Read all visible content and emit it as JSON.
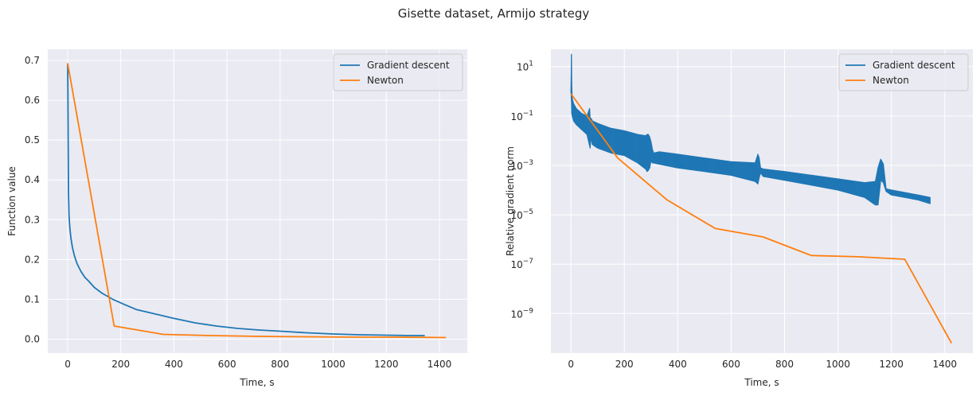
{
  "figure": {
    "title": "Gisette dataset, Armijo strategy"
  },
  "colors": {
    "background": "#eaeaf2",
    "grid": "#ffffff",
    "gradient_descent": "#1f77b4",
    "newton": "#ff7f0e"
  },
  "chart_data": [
    {
      "type": "line",
      "title": "",
      "xlabel": "Time, s",
      "ylabel": "Function value",
      "xlim": [
        -75,
        1505
      ],
      "ylim": [
        -0.035,
        0.728
      ],
      "yscale": "linear",
      "grid": true,
      "legend_position": "upper right",
      "xticks": [
        0,
        200,
        400,
        600,
        800,
        1000,
        1200,
        1400
      ],
      "yticks": [
        0.0,
        0.1,
        0.2,
        0.3,
        0.4,
        0.5,
        0.6,
        0.7
      ],
      "ytick_labels": [
        "0.0",
        "0.1",
        "0.2",
        "0.3",
        "0.4",
        "0.5",
        "0.6",
        "0.7"
      ],
      "series": [
        {
          "name": "Gradient descent",
          "x": [
            0,
            1,
            2,
            3,
            5,
            8,
            12,
            18,
            25,
            35,
            50,
            65,
            80,
            100,
            130,
            170,
            210,
            260,
            330,
            400,
            480,
            560,
            640,
            720,
            800,
            900,
            1000,
            1100,
            1200,
            1300,
            1345
          ],
          "y": [
            0.693,
            0.62,
            0.48,
            0.37,
            0.31,
            0.28,
            0.255,
            0.23,
            0.21,
            0.19,
            0.17,
            0.155,
            0.145,
            0.13,
            0.115,
            0.1,
            0.088,
            0.074,
            0.063,
            0.052,
            0.041,
            0.033,
            0.027,
            0.023,
            0.02,
            0.016,
            0.013,
            0.011,
            0.01,
            0.009,
            0.009
          ]
        },
        {
          "name": "Newton",
          "x": [
            0,
            175,
            360,
            540,
            720,
            900,
            1075,
            1250,
            1425
          ],
          "y": [
            0.693,
            0.033,
            0.012,
            0.009,
            0.007,
            0.006,
            0.005,
            0.005,
            0.004
          ]
        }
      ]
    },
    {
      "type": "line",
      "title": "",
      "xlabel": "Time, s",
      "ylabel": "Relative gradient norm",
      "xlim": [
        -75,
        1505
      ],
      "ylim_log10": [
        -10.6,
        1.7
      ],
      "yscale": "log",
      "grid": true,
      "legend_position": "upper right",
      "xticks": [
        0,
        200,
        400,
        600,
        800,
        1000,
        1200,
        1400
      ],
      "yticks_exp": [
        1,
        -1,
        -3,
        -5,
        -7,
        -9
      ],
      "ytick_labels": [
        "10^1",
        "10^-1",
        "10^-3",
        "10^-5",
        "10^-7",
        "10^-9"
      ],
      "series": [
        {
          "name": "Gradient descent",
          "style": "oscillating band",
          "x": [
            0,
            2,
            3,
            5,
            10,
            20,
            40,
            60,
            70,
            72,
            74,
            76,
            80,
            100,
            150,
            200,
            250,
            280,
            285,
            290,
            295,
            300,
            305,
            310,
            330,
            400,
            500,
            600,
            690,
            700,
            705,
            710,
            720,
            800,
            900,
            1000,
            1100,
            1140,
            1150,
            1160,
            1170,
            1180,
            1200,
            1300,
            1345
          ],
          "upper": [
            0.0,
            1.5,
            0.2,
            -0.3,
            -0.5,
            -0.7,
            -0.9,
            -1.0,
            -0.7,
            -1.1,
            -1.1,
            -1.1,
            -1.2,
            -1.3,
            -1.5,
            -1.6,
            -1.75,
            -1.8,
            -1.75,
            -1.75,
            -1.85,
            -2.05,
            -2.35,
            -2.5,
            -2.45,
            -2.55,
            -2.7,
            -2.85,
            -2.9,
            -2.55,
            -2.7,
            -3.1,
            -3.15,
            -3.25,
            -3.4,
            -3.55,
            -3.7,
            -3.65,
            -3.1,
            -2.75,
            -2.95,
            -3.95,
            -4.0,
            -4.2,
            -4.3
          ],
          "lower": [
            0.0,
            -0.4,
            -0.9,
            -1.0,
            -1.2,
            -1.35,
            -1.55,
            -1.75,
            -2.2,
            -2.3,
            -1.9,
            -1.95,
            -2.15,
            -2.3,
            -2.5,
            -2.6,
            -2.9,
            -3.15,
            -3.25,
            -3.2,
            -3.1,
            -2.8,
            -2.9,
            -2.9,
            -2.95,
            -3.1,
            -3.25,
            -3.4,
            -3.65,
            -3.75,
            -3.5,
            -3.3,
            -3.45,
            -3.6,
            -3.8,
            -4.0,
            -4.3,
            -4.6,
            -4.6,
            -3.6,
            -3.7,
            -4.05,
            -4.2,
            -4.4,
            -4.55
          ]
        },
        {
          "name": "Newton",
          "x": [
            0,
            175,
            360,
            540,
            720,
            900,
            1075,
            1250,
            1425
          ],
          "y_log10": [
            -0.1,
            -2.7,
            -4.4,
            -5.55,
            -5.9,
            -6.65,
            -6.7,
            -6.8,
            -10.2
          ]
        }
      ]
    }
  ]
}
